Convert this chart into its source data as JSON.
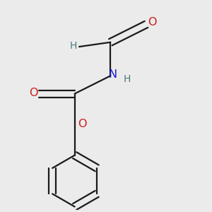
{
  "bg_color": "#ebebeb",
  "atom_colors": {
    "C": "#1a1a1a",
    "H": "#4a7a7a",
    "N": "#1a1acc",
    "O": "#cc1a1a"
  },
  "bond_color": "#1a1a1a",
  "bond_width": 1.6,
  "figsize": [
    3.0,
    3.0
  ],
  "dpi": 100,
  "xlim": [
    0.1,
    0.9
  ],
  "ylim": [
    0.05,
    0.98
  ]
}
